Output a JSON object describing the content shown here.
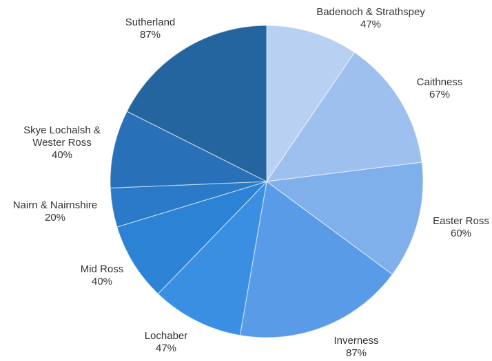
{
  "chart_data": {
    "type": "pie",
    "title": "",
    "start_angle_deg": 0,
    "direction": "clockwise",
    "slices": [
      {
        "label": "Badenoch & Strathspey",
        "value_label": "47%",
        "value": 47,
        "color": "#b8d0f2"
      },
      {
        "label": "Caithness",
        "value_label": "67%",
        "value": 67,
        "color": "#9ec0ef"
      },
      {
        "label": "Easter Ross",
        "value_label": "60%",
        "value": 60,
        "color": "#80b0ec"
      },
      {
        "label": "Inverness",
        "value_label": "87%",
        "value": 87,
        "color": "#5a9be8"
      },
      {
        "label": "Lochaber",
        "value_label": "47%",
        "value": 47,
        "color": "#3a8fe2"
      },
      {
        "label": "Mid Ross",
        "value_label": "40%",
        "value": 40,
        "color": "#2c82d4"
      },
      {
        "label": "Nairn & Nairnshire",
        "value_label": "20%",
        "value": 20,
        "color": "#2a7ac8"
      },
      {
        "label": "Skye Lochalsh & Wester Ross",
        "value_label": "40%",
        "value": 40,
        "color": "#2870b8"
      },
      {
        "label": "Sutherland",
        "value_label": "87%",
        "value": 87,
        "color": "#24649f"
      }
    ]
  }
}
